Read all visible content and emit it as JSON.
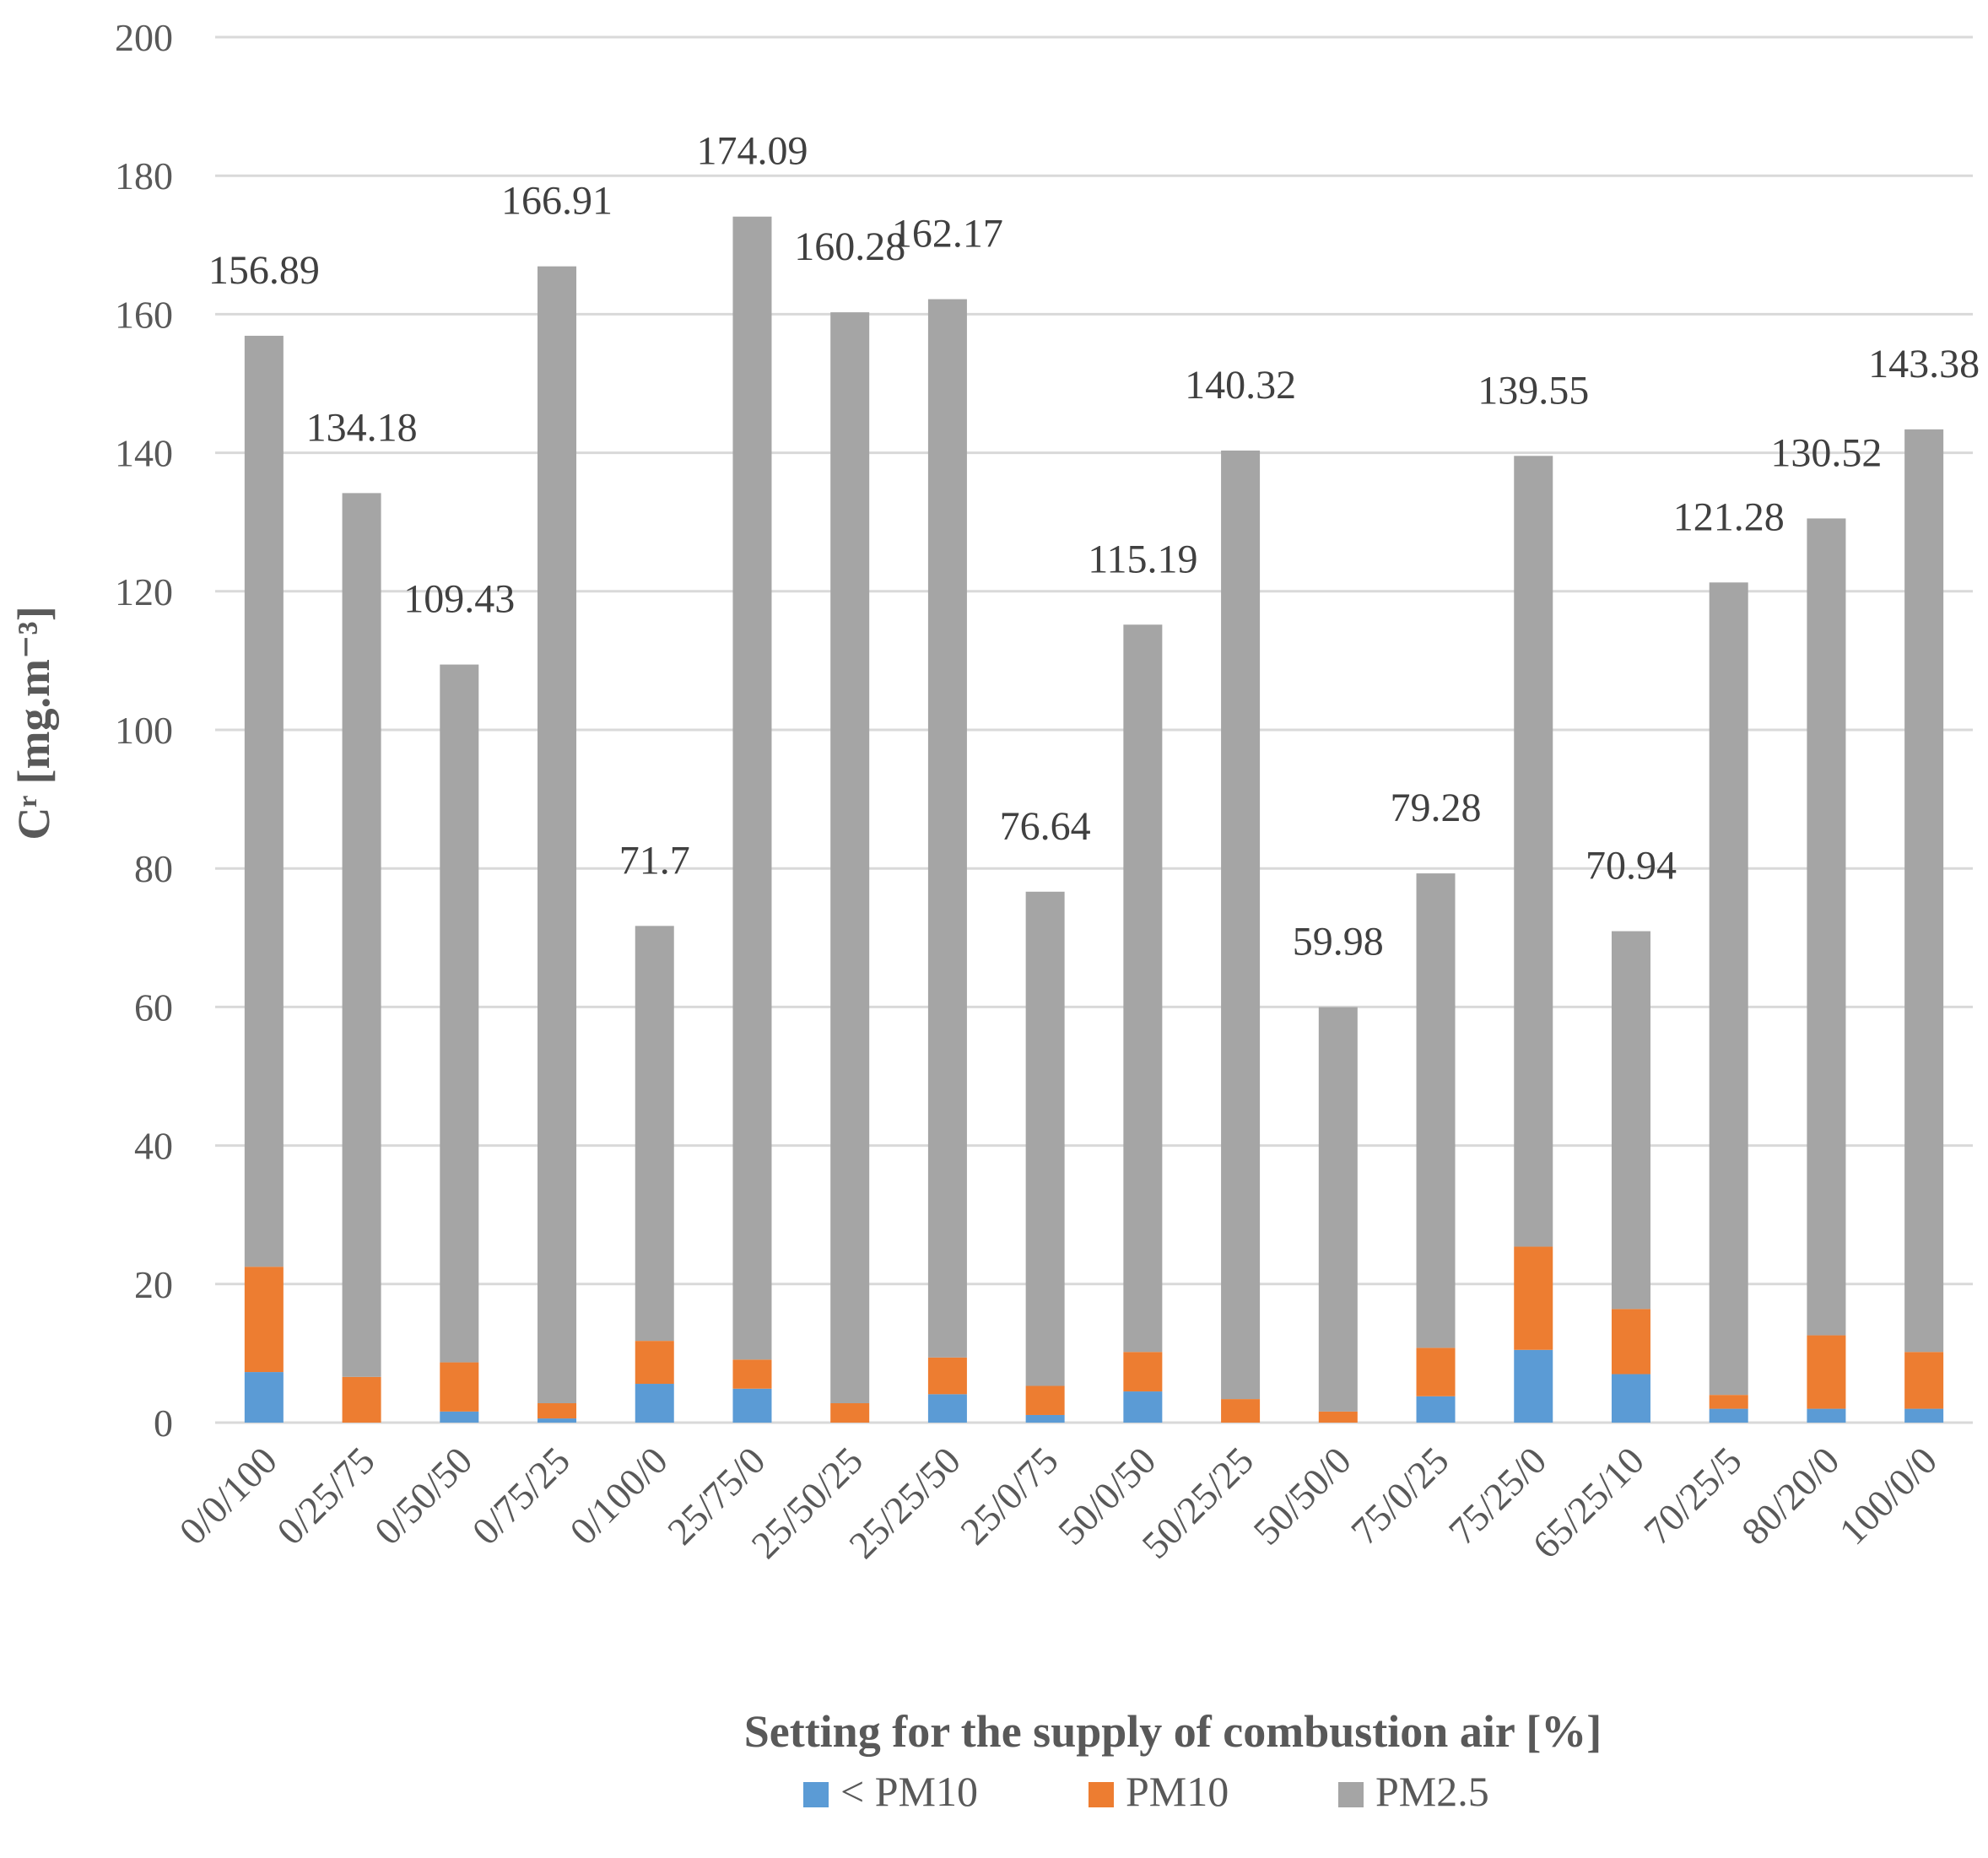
{
  "chart_data": {
    "type": "bar",
    "stacked": true,
    "title": "",
    "xlabel": "Setting for the supply of combustion air [%]",
    "ylabel": "Cʳ [mg.m⁻³]",
    "ylim": [
      0,
      200
    ],
    "yticks": [
      0,
      20,
      40,
      60,
      80,
      100,
      120,
      140,
      160,
      180,
      200
    ],
    "grid": true,
    "legend_position": "bottom",
    "categories": [
      "0/0/100",
      "0/25/75",
      "0/50/50",
      "0/75/25",
      "0/100/0",
      "25/75/0",
      "25/50/25",
      "25/25/50",
      "25/0/75",
      "50/0/50",
      "50/25/25",
      "50/50/0",
      "75/0/25",
      "75/25/0",
      "65/25/10",
      "70/25/5",
      "80/20/0",
      "100/0/0"
    ],
    "series": [
      {
        "name": "< PM10",
        "color": "#5b9bd5",
        "values": [
          7.3,
          0,
          1.6,
          0.6,
          5.6,
          4.9,
          0,
          4.1,
          1.1,
          4.5,
          0,
          0,
          3.8,
          10.5,
          7.0,
          2.0,
          2.0,
          2.0
        ]
      },
      {
        "name": "PM10",
        "color": "#ed7d31",
        "values": [
          15.2,
          6.6,
          7.1,
          2.2,
          6.2,
          4.2,
          2.8,
          5.3,
          4.2,
          5.7,
          3.4,
          1.6,
          7.0,
          14.9,
          9.4,
          2.0,
          10.6,
          8.2
        ]
      },
      {
        "name": "PM2.5",
        "color": "#a5a5a5",
        "values": [
          134.39,
          127.58,
          100.73,
          164.11,
          59.9,
          164.99,
          157.48,
          152.77,
          71.34,
          104.99,
          136.92,
          58.38,
          68.48,
          114.15,
          54.54,
          117.28,
          117.92,
          133.18
        ]
      }
    ],
    "totals": [
      156.89,
      134.18,
      109.43,
      166.91,
      71.7,
      174.09,
      160.28,
      162.17,
      76.64,
      115.19,
      140.32,
      59.98,
      79.28,
      139.55,
      70.94,
      121.28,
      130.52,
      143.38
    ],
    "total_labels": [
      "156.89",
      "134.18",
      "109.43",
      "166.91",
      "71.7",
      "174.09",
      "160.28",
      "162.17",
      "76.64",
      "115.19",
      "140.32",
      "59.98",
      "79.28",
      "139.55",
      "70.94",
      "121.28",
      "130.52",
      "143.38"
    ],
    "gridline_color": "#d9d9d9"
  }
}
